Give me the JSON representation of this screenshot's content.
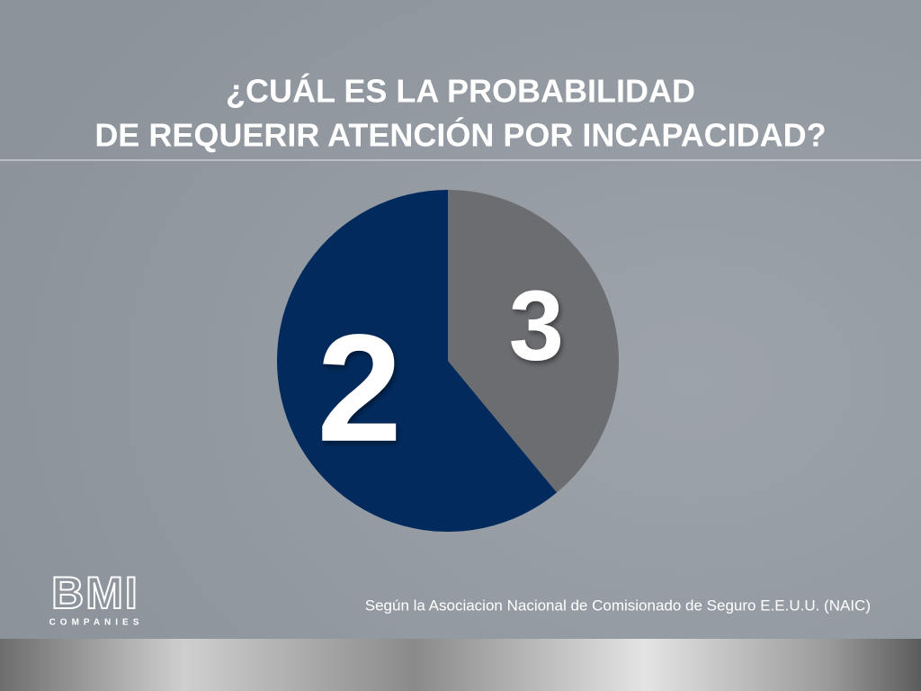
{
  "chart_data": {
    "type": "pie",
    "title_lines": [
      "¿CUÁL ES LA PROBABILIDAD",
      "DE REQUERIR ATENCIÓN POR INCAPACIDAD?"
    ],
    "categories": [
      "2",
      "3"
    ],
    "values": [
      61,
      39
    ],
    "colors": [
      "#022a5c",
      "#6c6d71"
    ],
    "source": "Según la Asociacion Nacional de Comisionado de Seguro E.E.U.U. (NAIC)"
  },
  "logo": {
    "name": "BMI",
    "tagline": "COMPANIES"
  }
}
